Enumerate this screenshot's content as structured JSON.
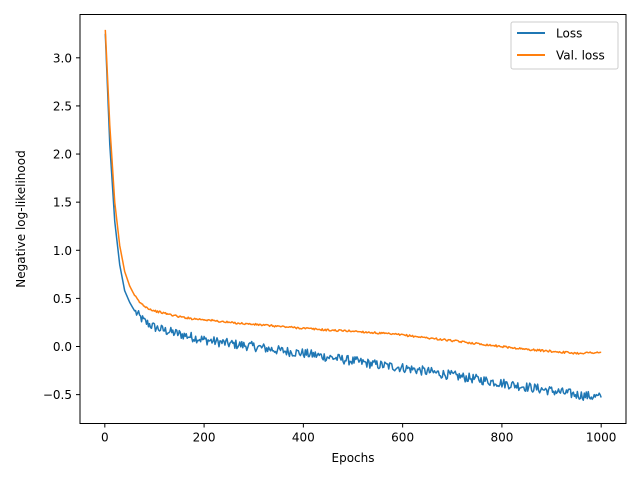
{
  "chart_data": {
    "type": "line",
    "title": "",
    "xlabel": "Epochs",
    "ylabel": "Negative log-likelihood",
    "xlim": [
      -50,
      1050
    ],
    "ylim": [
      -0.8,
      3.45
    ],
    "xticks": [
      0,
      200,
      400,
      600,
      800,
      1000
    ],
    "xtick_labels": [
      "0",
      "200",
      "400",
      "600",
      "800",
      "1000"
    ],
    "yticks": [
      -0.5,
      0.0,
      0.5,
      1.0,
      1.5,
      2.0,
      2.5,
      3.0
    ],
    "ytick_labels": [
      "−0.5",
      "0.0",
      "0.5",
      "1.0",
      "1.5",
      "2.0",
      "2.5",
      "3.0"
    ],
    "grid": false,
    "legend_position": "top-right",
    "series": [
      {
        "name": "Loss",
        "color": "#1f77b4",
        "x": [
          1,
          10,
          20,
          30,
          40,
          50,
          60,
          70,
          80,
          90,
          100,
          125,
          150,
          175,
          200,
          250,
          300,
          350,
          400,
          450,
          500,
          550,
          600,
          650,
          700,
          750,
          800,
          850,
          900,
          950,
          1000
        ],
        "y": [
          3.25,
          2.1,
          1.3,
          0.85,
          0.58,
          0.46,
          0.37,
          0.31,
          0.26,
          0.23,
          0.2,
          0.16,
          0.13,
          0.1,
          0.07,
          0.03,
          0.0,
          -0.04,
          -0.07,
          -0.11,
          -0.15,
          -0.19,
          -0.22,
          -0.26,
          -0.3,
          -0.34,
          -0.38,
          -0.42,
          -0.46,
          -0.5,
          -0.53
        ],
        "noise": 0.05
      },
      {
        "name": "Val. loss",
        "color": "#ff7f0e",
        "x": [
          1,
          10,
          20,
          30,
          40,
          50,
          60,
          70,
          80,
          90,
          100,
          125,
          150,
          175,
          200,
          250,
          300,
          350,
          400,
          450,
          500,
          550,
          600,
          650,
          700,
          750,
          800,
          850,
          900,
          950,
          1000
        ],
        "y": [
          3.29,
          2.3,
          1.5,
          1.05,
          0.78,
          0.63,
          0.53,
          0.46,
          0.42,
          0.39,
          0.37,
          0.34,
          0.31,
          0.29,
          0.28,
          0.25,
          0.23,
          0.21,
          0.19,
          0.17,
          0.16,
          0.14,
          0.12,
          0.09,
          0.06,
          0.03,
          0.0,
          -0.03,
          -0.05,
          -0.07,
          -0.06
        ],
        "noise": 0.01
      }
    ]
  }
}
